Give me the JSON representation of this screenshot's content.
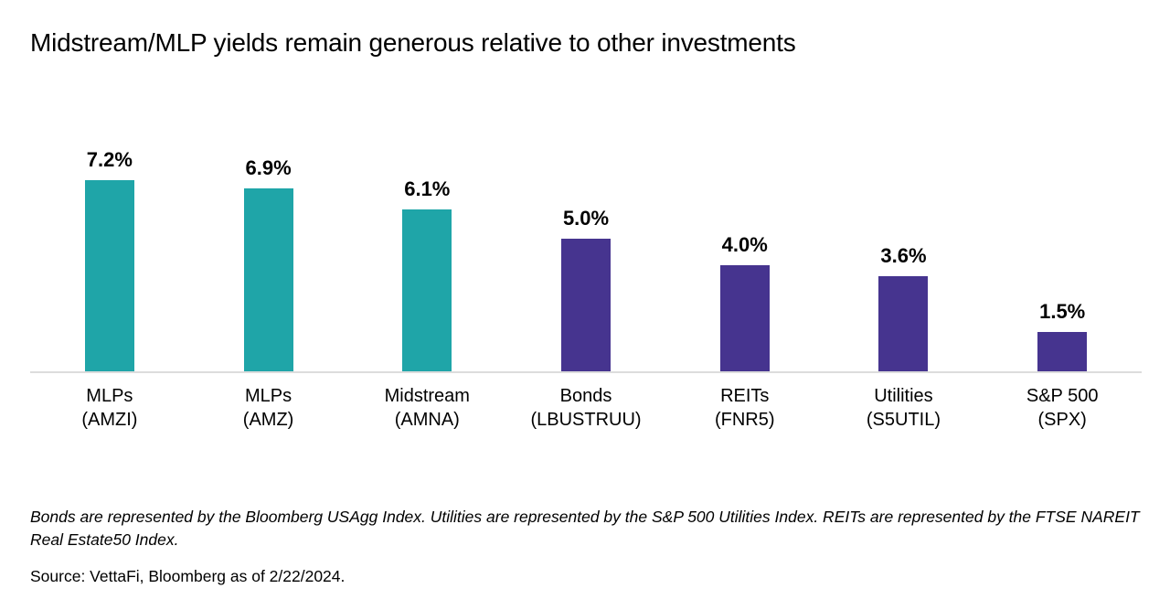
{
  "page": {
    "title": "Midstream/MLP yields remain generous relative to other investments",
    "footnote": "Bonds are represented by the Bloomberg USAgg Index. Utilities are represented by the S&P 500 Utilities Index. REITs are represented by the FTSE NAREIT Real Estate50 Index.",
    "source": "Source: VettaFi, Bloomberg as of 2/22/2024."
  },
  "colors": {
    "teal": "#1FA5A8",
    "purple": "#46348F",
    "axis_line": "#DCDCDC",
    "text": "#000000"
  },
  "chart_data": {
    "type": "bar",
    "title": "Midstream/MLP yields remain generous relative to other investments",
    "xlabel": "",
    "ylabel": "",
    "ylim": [
      0,
      8
    ],
    "grid": false,
    "legend": false,
    "categories": [
      "MLPs (AMZI)",
      "MLPs (AMZ)",
      "Midstream (AMNA)",
      "Bonds (LBUSTRUU)",
      "REITs (FNR5)",
      "Utilities (S5UTIL)",
      "S&P 500 (SPX)"
    ],
    "values": [
      7.2,
      6.9,
      6.1,
      5.0,
      4.0,
      3.6,
      1.5
    ],
    "bars": [
      {
        "name": "MLPs",
        "ticker": "(AMZI)",
        "value": 7.2,
        "label": "7.2%",
        "color": "teal"
      },
      {
        "name": "MLPs",
        "ticker": "(AMZ)",
        "value": 6.9,
        "label": "6.9%",
        "color": "teal"
      },
      {
        "name": "Midstream",
        "ticker": "(AMNA)",
        "value": 6.1,
        "label": "6.1%",
        "color": "teal"
      },
      {
        "name": "Bonds",
        "ticker": "(LBUSTRUU)",
        "value": 5.0,
        "label": "5.0%",
        "color": "purple"
      },
      {
        "name": "REITs",
        "ticker": "(FNR5)",
        "value": 4.0,
        "label": "4.0%",
        "color": "purple"
      },
      {
        "name": "Utilities",
        "ticker": "(S5UTIL)",
        "value": 3.6,
        "label": "3.6%",
        "color": "purple"
      },
      {
        "name": "S&P 500",
        "ticker": "(SPX)",
        "value": 1.5,
        "label": "1.5%",
        "color": "purple"
      }
    ]
  }
}
